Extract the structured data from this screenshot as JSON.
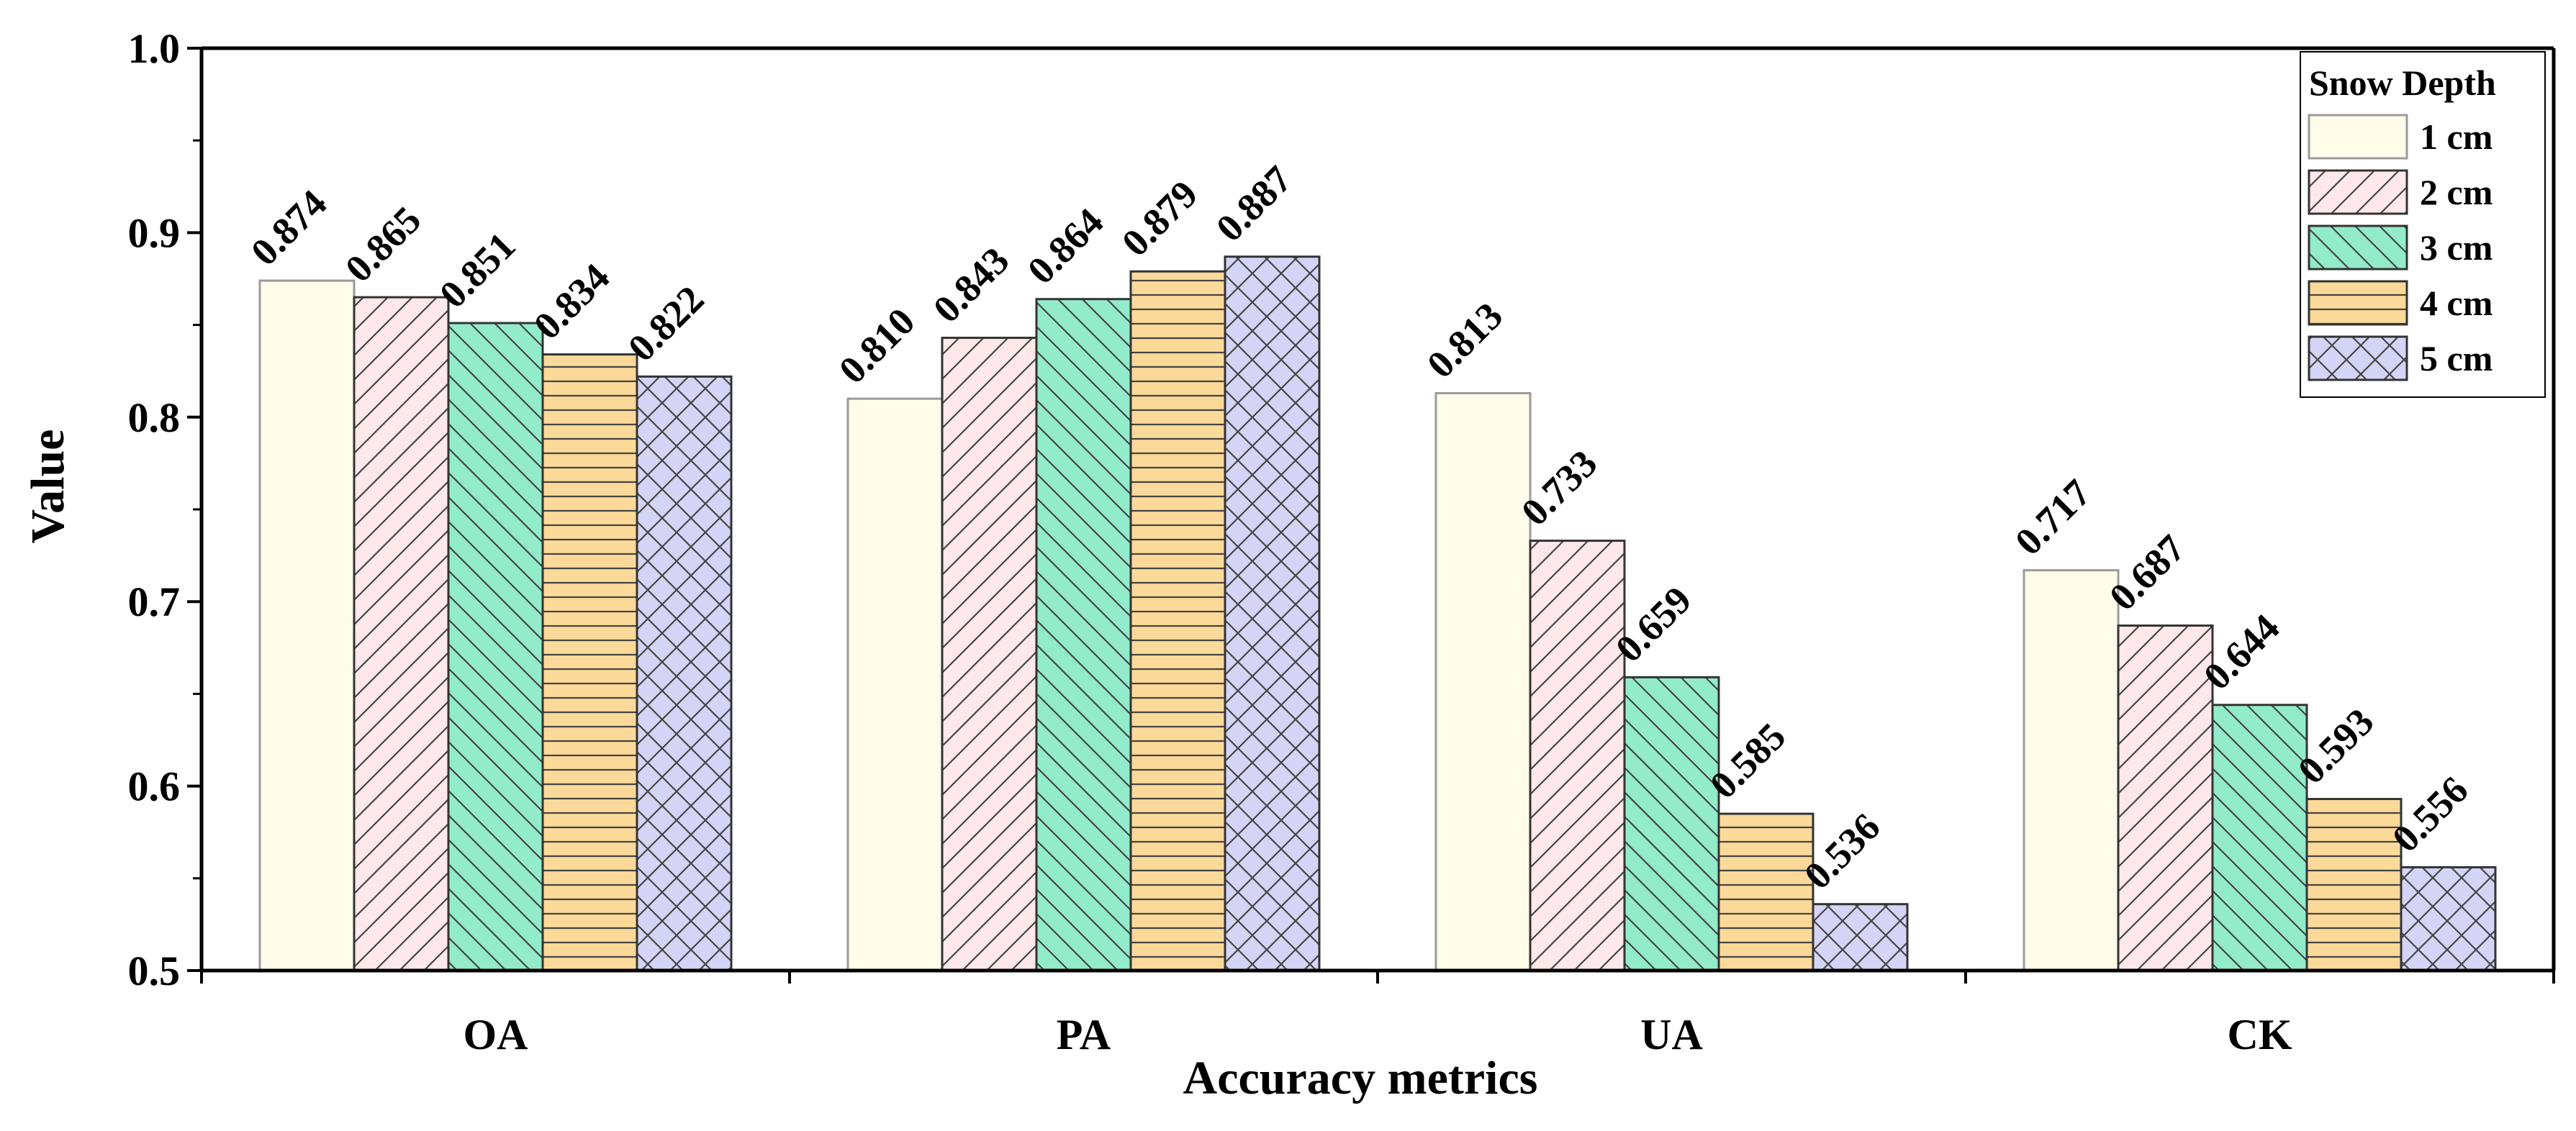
{
  "chart_data": {
    "type": "bar",
    "title": "",
    "xlabel": "Accuracy metrics",
    "ylabel": "Value",
    "ylim": [
      0.5,
      1.0
    ],
    "yticks": [
      "0.5",
      "0.6",
      "0.7",
      "0.8",
      "0.9",
      "1.0"
    ],
    "categories": [
      "OA",
      "PA",
      "UA",
      "CK"
    ],
    "legend": {
      "title": "Snow Depth",
      "placement": "top-right"
    },
    "series": [
      {
        "name": "1 cm",
        "values": [
          0.874,
          0.81,
          0.813,
          0.717
        ],
        "labels": [
          "0.874",
          "0.810",
          "0.813",
          "0.717"
        ],
        "fill": "#fffcea",
        "stroke": "#9a9a9a",
        "pattern": "none"
      },
      {
        "name": "2 cm",
        "values": [
          0.865,
          0.843,
          0.733,
          0.687
        ],
        "labels": [
          "0.865",
          "0.843",
          "0.733",
          "0.687"
        ],
        "fill": "#ffe8ea",
        "stroke": "#333333",
        "pattern": "diag-right"
      },
      {
        "name": "3 cm",
        "values": [
          0.851,
          0.864,
          0.659,
          0.644
        ],
        "labels": [
          "0.851",
          "0.864",
          "0.659",
          "0.644"
        ],
        "fill": "#93ecc9",
        "stroke": "#333333",
        "pattern": "diag-left"
      },
      {
        "name": "4 cm",
        "values": [
          0.834,
          0.879,
          0.585,
          0.593
        ],
        "labels": [
          "0.834",
          "0.879",
          "0.585",
          "0.593"
        ],
        "fill": "#fbd999",
        "stroke": "#333333",
        "pattern": "horizontal"
      },
      {
        "name": "5 cm",
        "values": [
          0.822,
          0.887,
          0.536,
          0.556
        ],
        "labels": [
          "0.822",
          "0.887",
          "0.536",
          "0.556"
        ],
        "fill": "#d4d4f7",
        "stroke": "#333333",
        "pattern": "crosshatch"
      }
    ]
  }
}
